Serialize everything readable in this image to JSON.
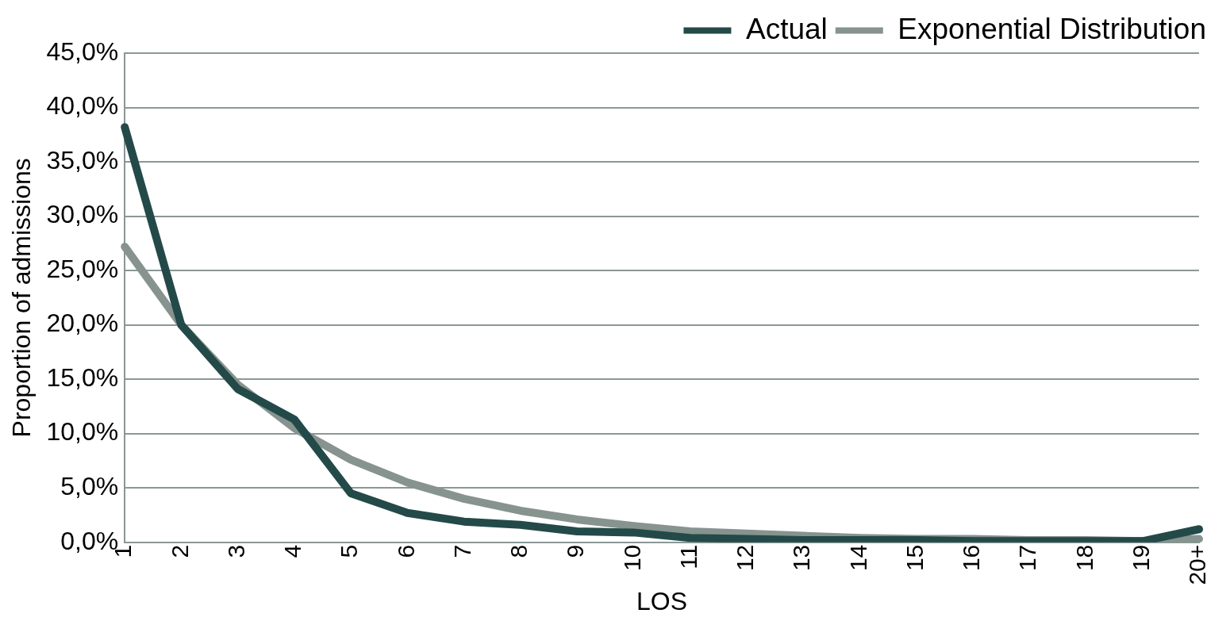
{
  "chart_data": {
    "type": "line",
    "xlabel": "LOS",
    "ylabel": "Proportion of admissions",
    "categories": [
      "1",
      "2",
      "3",
      "4",
      "5",
      "6",
      "7",
      "8",
      "9",
      "10",
      "11",
      "12",
      "13",
      "14",
      "15",
      "16",
      "17",
      "18",
      "19",
      "20+"
    ],
    "series": [
      {
        "name": "Actual",
        "color": "#234a48",
        "values": [
          38.2,
          20.0,
          14.1,
          11.3,
          4.5,
          2.7,
          1.9,
          1.6,
          1.0,
          0.9,
          0.4,
          0.3,
          0.2,
          0.2,
          0.2,
          0.1,
          0.1,
          0.1,
          0.1,
          1.2
        ]
      },
      {
        "name": "Exponential Distribution",
        "color": "#87938f",
        "values": [
          27.2,
          20.0,
          14.5,
          10.5,
          7.6,
          5.5,
          4.0,
          2.9,
          2.1,
          1.5,
          1.0,
          0.8,
          0.6,
          0.4,
          0.3,
          0.3,
          0.2,
          0.2,
          0.1,
          0.3
        ]
      }
    ],
    "ylim": [
      0,
      45
    ],
    "yticks": [
      {
        "value": 0,
        "label": "0,0%"
      },
      {
        "value": 5,
        "label": "5,0%"
      },
      {
        "value": 10,
        "label": "10,0%"
      },
      {
        "value": 15,
        "label": "15,0%"
      },
      {
        "value": 20,
        "label": "20,0%"
      },
      {
        "value": 25,
        "label": "25,0%"
      },
      {
        "value": 30,
        "label": "30,0%"
      },
      {
        "value": 35,
        "label": "35,0%"
      },
      {
        "value": 40,
        "label": "40,0%"
      },
      {
        "value": 45,
        "label": "45,0%"
      }
    ],
    "grid": "y",
    "legend": "top right",
    "marker": "none",
    "line_style": "solid"
  }
}
